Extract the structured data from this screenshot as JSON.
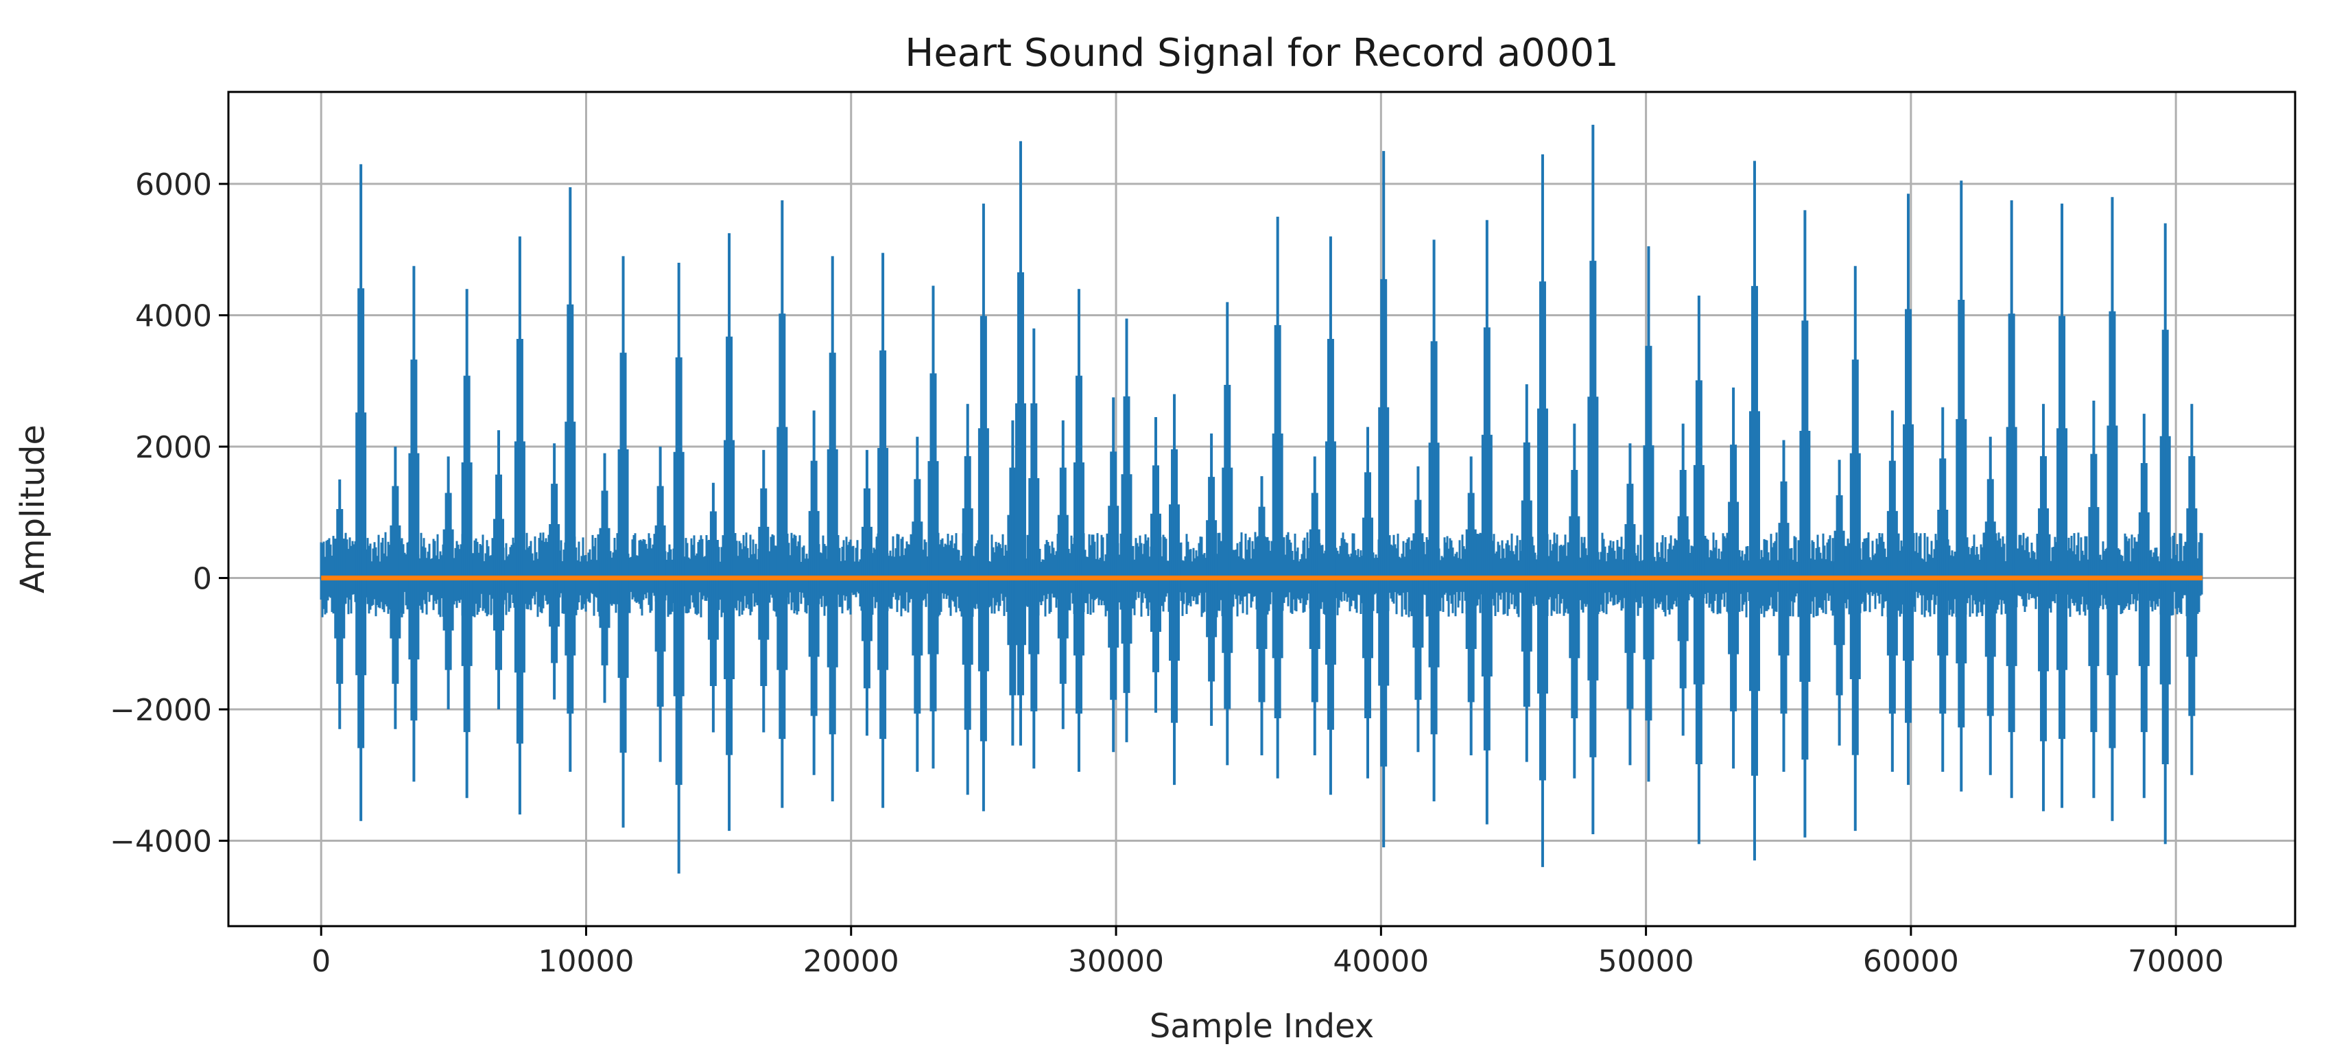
{
  "chart_data": {
    "type": "line",
    "title": "Heart Sound Signal for Record a0001",
    "xlabel": "Sample Index",
    "ylabel": "Amplitude",
    "xlim": [
      -3500,
      74500
    ],
    "ylim": [
      -5300,
      7400
    ],
    "grid": true,
    "x_ticks": [
      0,
      10000,
      20000,
      30000,
      40000,
      50000,
      60000,
      70000
    ],
    "x_tick_labels": [
      "0",
      "10000",
      "20000",
      "30000",
      "40000",
      "50000",
      "60000",
      "70000"
    ],
    "y_ticks": [
      -4000,
      -2000,
      0,
      2000,
      4000,
      6000
    ],
    "y_tick_labels": [
      "−4000",
      "−2000",
      "0",
      "2000",
      "4000",
      "6000"
    ],
    "series": [
      {
        "color": "#1f77b4",
        "x_range": [
          0,
          71000
        ],
        "baseline_envelope": [
          -600,
          700
        ],
        "s1_peaks": [
          {
            "x": 1500,
            "max": 6300,
            "min": -3700
          },
          {
            "x": 3500,
            "max": 4750,
            "min": -3100
          },
          {
            "x": 5500,
            "max": 4400,
            "min": -3350
          },
          {
            "x": 7500,
            "max": 5200,
            "min": -3600
          },
          {
            "x": 9400,
            "max": 5950,
            "min": -2950
          },
          {
            "x": 11400,
            "max": 4900,
            "min": -3800
          },
          {
            "x": 13500,
            "max": 4800,
            "min": -4500
          },
          {
            "x": 15400,
            "max": 5250,
            "min": -3850
          },
          {
            "x": 17400,
            "max": 5750,
            "min": -3500
          },
          {
            "x": 19300,
            "max": 4900,
            "min": -3400
          },
          {
            "x": 21200,
            "max": 4950,
            "min": -3500
          },
          {
            "x": 23100,
            "max": 4450,
            "min": -2900
          },
          {
            "x": 25000,
            "max": 5700,
            "min": -3550
          },
          {
            "x": 26400,
            "max": 6650,
            "min": -2550
          },
          {
            "x": 28600,
            "max": 4400,
            "min": -2950
          },
          {
            "x": 30400,
            "max": 3950,
            "min": -2500
          },
          {
            "x": 32200,
            "max": 2800,
            "min": -3150
          },
          {
            "x": 34200,
            "max": 4200,
            "min": -2850
          },
          {
            "x": 36100,
            "max": 5500,
            "min": -3050
          },
          {
            "x": 38100,
            "max": 5200,
            "min": -3300
          },
          {
            "x": 40100,
            "max": 6500,
            "min": -4100
          },
          {
            "x": 42000,
            "max": 5150,
            "min": -3400
          },
          {
            "x": 44000,
            "max": 5450,
            "min": -3750
          },
          {
            "x": 46100,
            "max": 6450,
            "min": -4400
          },
          {
            "x": 48000,
            "max": 6900,
            "min": -3900
          },
          {
            "x": 50100,
            "max": 5050,
            "min": -3100
          },
          {
            "x": 52000,
            "max": 4300,
            "min": -4050
          },
          {
            "x": 54100,
            "max": 6350,
            "min": -4300
          },
          {
            "x": 56000,
            "max": 5600,
            "min": -3950
          },
          {
            "x": 57900,
            "max": 4750,
            "min": -3850
          },
          {
            "x": 59900,
            "max": 5850,
            "min": -3150
          },
          {
            "x": 61900,
            "max": 6050,
            "min": -3250
          },
          {
            "x": 63800,
            "max": 5750,
            "min": -3350
          },
          {
            "x": 65700,
            "max": 5700,
            "min": -3500
          },
          {
            "x": 67600,
            "max": 5800,
            "min": -3700
          },
          {
            "x": 69600,
            "max": 5400,
            "min": -4050
          }
        ],
        "s2_peaks": [
          {
            "x": 700,
            "max": 1500,
            "min": -2300
          },
          {
            "x": 2800,
            "max": 2000,
            "min": -2300
          },
          {
            "x": 4800,
            "max": 1850,
            "min": -2000
          },
          {
            "x": 6700,
            "max": 2250,
            "min": -2000
          },
          {
            "x": 8800,
            "max": 2050,
            "min": -1850
          },
          {
            "x": 10700,
            "max": 1900,
            "min": -1900
          },
          {
            "x": 12800,
            "max": 2000,
            "min": -2800
          },
          {
            "x": 14800,
            "max": 1450,
            "min": -2350
          },
          {
            "x": 16700,
            "max": 1950,
            "min": -2350
          },
          {
            "x": 18600,
            "max": 2550,
            "min": -3000
          },
          {
            "x": 20600,
            "max": 1950,
            "min": -2400
          },
          {
            "x": 22500,
            "max": 2150,
            "min": -2950
          },
          {
            "x": 24400,
            "max": 2650,
            "min": -3300
          },
          {
            "x": 26100,
            "max": 2400,
            "min": -2550
          },
          {
            "x": 26900,
            "max": 3800,
            "min": -2900
          },
          {
            "x": 28000,
            "max": 2400,
            "min": -2300
          },
          {
            "x": 29900,
            "max": 2750,
            "min": -2650
          },
          {
            "x": 31500,
            "max": 2450,
            "min": -2050
          },
          {
            "x": 33600,
            "max": 2200,
            "min": -2250
          },
          {
            "x": 35500,
            "max": 1550,
            "min": -2700
          },
          {
            "x": 37500,
            "max": 1850,
            "min": -2700
          },
          {
            "x": 39500,
            "max": 2300,
            "min": -3050
          },
          {
            "x": 41400,
            "max": 1700,
            "min": -2650
          },
          {
            "x": 43400,
            "max": 1850,
            "min": -2700
          },
          {
            "x": 45500,
            "max": 2950,
            "min": -2800
          },
          {
            "x": 47300,
            "max": 2350,
            "min": -3050
          },
          {
            "x": 49400,
            "max": 2050,
            "min": -2850
          },
          {
            "x": 51400,
            "max": 2350,
            "min": -2400
          },
          {
            "x": 53300,
            "max": 2900,
            "min": -2900
          },
          {
            "x": 55200,
            "max": 2100,
            "min": -2950
          },
          {
            "x": 57300,
            "max": 1800,
            "min": -2550
          },
          {
            "x": 59300,
            "max": 2550,
            "min": -2950
          },
          {
            "x": 61200,
            "max": 2600,
            "min": -2950
          },
          {
            "x": 63000,
            "max": 2150,
            "min": -3000
          },
          {
            "x": 65000,
            "max": 2650,
            "min": -3550
          },
          {
            "x": 66900,
            "max": 2700,
            "min": -3350
          },
          {
            "x": 68800,
            "max": 2500,
            "min": -3350
          },
          {
            "x": 70600,
            "max": 2650,
            "min": -3000
          }
        ]
      },
      {
        "color": "#ff7f0e",
        "x": [
          0,
          71000
        ],
        "y": [
          0,
          0
        ]
      }
    ]
  }
}
